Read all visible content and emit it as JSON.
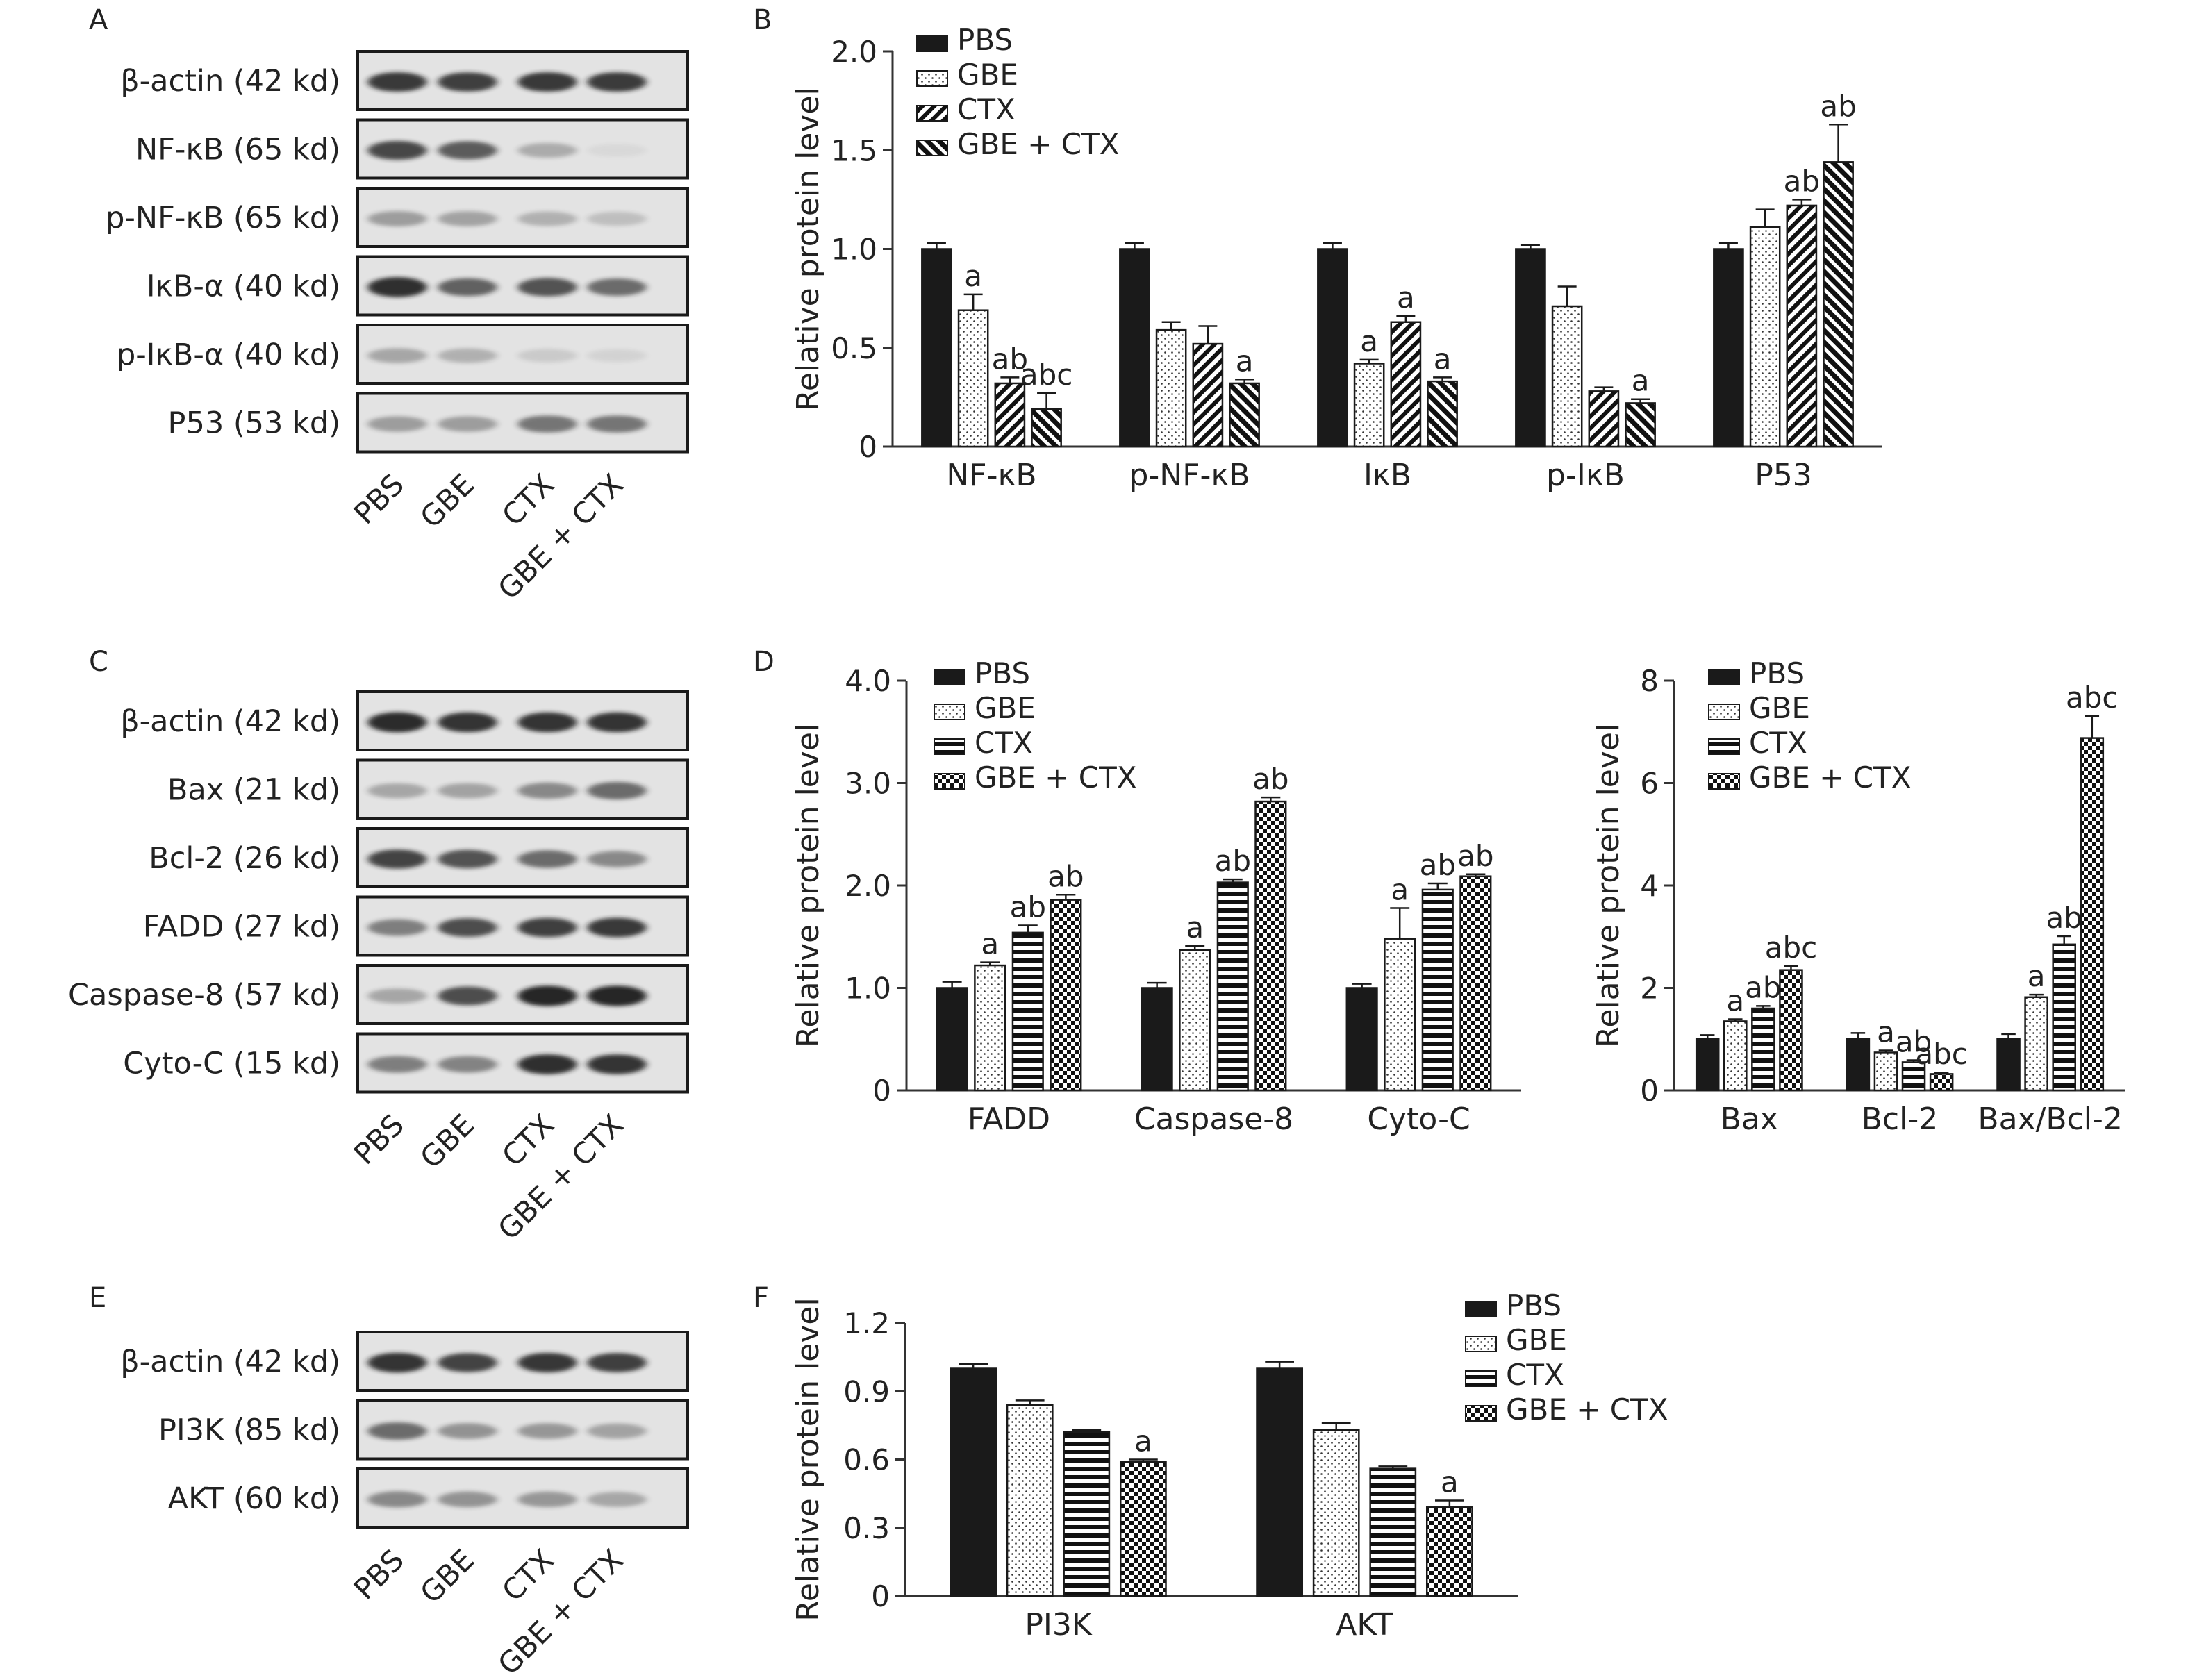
{
  "panel_letters": {
    "a": "A",
    "b": "B",
    "c": "C",
    "d": "D",
    "e": "E",
    "f": "F"
  },
  "lane_labels": [
    "PBS",
    "GBE",
    "CTX",
    "GBE + CTX"
  ],
  "blots": [
    {
      "panel": "A",
      "rows": [
        {
          "label": "β-actin (42 kd)",
          "intensity": [
            0.85,
            0.82,
            0.85,
            0.84
          ]
        },
        {
          "label": "NF-κB (65 kd)",
          "intensity": [
            0.78,
            0.68,
            0.28,
            0.05
          ]
        },
        {
          "label": "p-NF-κB (65 kd)",
          "intensity": [
            0.35,
            0.32,
            0.25,
            0.18
          ]
        },
        {
          "label": "IκB-α (40 kd)",
          "intensity": [
            0.9,
            0.65,
            0.72,
            0.6
          ]
        },
        {
          "label": "p-IκB-α (40 kd)",
          "intensity": [
            0.3,
            0.25,
            0.12,
            0.08
          ]
        },
        {
          "label": "P53 (53 kd)",
          "intensity": [
            0.35,
            0.35,
            0.55,
            0.55
          ]
        }
      ]
    },
    {
      "panel": "C",
      "rows": [
        {
          "label": "β-actin (42 kd)",
          "intensity": [
            0.92,
            0.88,
            0.88,
            0.88
          ]
        },
        {
          "label": "Bax (21 kd)",
          "intensity": [
            0.3,
            0.32,
            0.45,
            0.6
          ]
        },
        {
          "label": "Bcl-2 (26 kd)",
          "intensity": [
            0.8,
            0.72,
            0.6,
            0.45
          ]
        },
        {
          "label": "FADD (27 kd)",
          "intensity": [
            0.5,
            0.75,
            0.82,
            0.85
          ]
        },
        {
          "label": "Caspase-8 (57 kd)",
          "intensity": [
            0.3,
            0.75,
            0.95,
            0.95
          ]
        },
        {
          "label": "Cyto-C (15 kd)",
          "intensity": [
            0.5,
            0.48,
            0.9,
            0.88
          ]
        }
      ]
    },
    {
      "panel": "E",
      "rows": [
        {
          "label": "β-actin (42 kd)",
          "intensity": [
            0.88,
            0.8,
            0.86,
            0.82
          ]
        },
        {
          "label": "PI3K (85 kd)",
          "intensity": [
            0.6,
            0.4,
            0.38,
            0.32
          ]
        },
        {
          "label": "AKT (60 kd)",
          "intensity": [
            0.45,
            0.4,
            0.38,
            0.3
          ]
        }
      ]
    }
  ],
  "series_styles": {
    "PBS": {
      "pattern": "solid",
      "color": "#1a1a1a"
    },
    "GBE": {
      "pattern": "dots"
    },
    "CTX": {
      "pattern": "horizontal-stripes"
    },
    "GBE + CTX": {
      "pattern": "checker"
    }
  },
  "chart_data": [
    {
      "id": "B",
      "type": "bar",
      "ylabel": "Relative protein level",
      "ylim": [
        0,
        2.0
      ],
      "yticks": [
        "0",
        "0.5",
        "1.0",
        "1.5",
        "2.0"
      ],
      "categories": [
        "NF-κB",
        "p-NF-κB",
        "IκB",
        "p-IκB",
        "P53"
      ],
      "legend_position": "top-left",
      "series": [
        {
          "name": "PBS",
          "pattern": "solid",
          "values": [
            1.0,
            1.0,
            1.0,
            1.0,
            1.0
          ],
          "errors": [
            0.03,
            0.03,
            0.03,
            0.02,
            0.03
          ],
          "marks": [
            "",
            "",
            "",
            "",
            ""
          ]
        },
        {
          "name": "GBE",
          "pattern": "dots",
          "values": [
            0.69,
            0.59,
            0.42,
            0.71,
            1.11
          ],
          "errors": [
            0.08,
            0.04,
            0.02,
            0.1,
            0.09
          ],
          "marks": [
            "a",
            "",
            "a",
            "",
            ""
          ]
        },
        {
          "name": "CTX",
          "pattern": "diagonal-stripes",
          "values": [
            0.32,
            0.52,
            0.63,
            0.28,
            1.22
          ],
          "errors": [
            0.03,
            0.09,
            0.03,
            0.02,
            0.03
          ],
          "marks": [
            "ab",
            "",
            "a",
            "",
            "ab"
          ]
        },
        {
          "name": "GBE + CTX",
          "pattern": "diagonal-hatch",
          "values": [
            0.19,
            0.32,
            0.33,
            0.22,
            1.44
          ],
          "errors": [
            0.08,
            0.02,
            0.02,
            0.02,
            0.19
          ],
          "marks": [
            "abc",
            "a",
            "a",
            "a",
            "ab"
          ]
        }
      ]
    },
    {
      "id": "D1",
      "type": "bar",
      "ylabel": "Relative protein level",
      "ylim": [
        0,
        4.0
      ],
      "yticks": [
        "0",
        "1.0",
        "2.0",
        "3.0",
        "4.0"
      ],
      "categories": [
        "FADD",
        "Caspase-8",
        "Cyto-C"
      ],
      "legend_position": "top-left",
      "series": [
        {
          "name": "PBS",
          "pattern": "solid",
          "values": [
            1.0,
            1.0,
            1.0
          ],
          "errors": [
            0.06,
            0.05,
            0.04
          ],
          "marks": [
            "",
            "",
            ""
          ]
        },
        {
          "name": "GBE",
          "pattern": "dots",
          "values": [
            1.22,
            1.37,
            1.48
          ],
          "errors": [
            0.03,
            0.04,
            0.3
          ],
          "marks": [
            "a",
            "a",
            "a"
          ]
        },
        {
          "name": "CTX",
          "pattern": "horizontal-stripes",
          "values": [
            1.54,
            2.03,
            1.96
          ],
          "errors": [
            0.07,
            0.03,
            0.06
          ],
          "marks": [
            "ab",
            "ab",
            "ab"
          ]
        },
        {
          "name": "GBE + CTX",
          "pattern": "checker",
          "values": [
            1.86,
            2.82,
            2.09
          ],
          "errors": [
            0.05,
            0.04,
            0.02
          ],
          "marks": [
            "ab",
            "ab",
            "ab"
          ]
        }
      ]
    },
    {
      "id": "D2",
      "type": "bar",
      "ylabel": "Relative protein level",
      "ylim": [
        0,
        8
      ],
      "yticks": [
        "0",
        "2",
        "4",
        "6",
        "8"
      ],
      "categories": [
        "Bax",
        "Bcl-2",
        "Bax/Bcl-2"
      ],
      "legend_position": "top-left",
      "series": [
        {
          "name": "PBS",
          "pattern": "solid",
          "values": [
            1.0,
            1.0,
            1.0
          ],
          "errors": [
            0.08,
            0.12,
            0.1
          ],
          "marks": [
            "",
            "",
            ""
          ]
        },
        {
          "name": "GBE",
          "pattern": "dots",
          "values": [
            1.35,
            0.74,
            1.82
          ],
          "errors": [
            0.04,
            0.04,
            0.05
          ],
          "marks": [
            "a",
            "a",
            "a"
          ]
        },
        {
          "name": "CTX",
          "pattern": "horizontal-stripes",
          "values": [
            1.6,
            0.55,
            2.85
          ],
          "errors": [
            0.05,
            0.04,
            0.16
          ],
          "marks": [
            "ab",
            "ab",
            "ab"
          ]
        },
        {
          "name": "GBE + CTX",
          "pattern": "checker",
          "values": [
            2.35,
            0.32,
            6.88
          ],
          "errors": [
            0.08,
            0.03,
            0.43
          ],
          "marks": [
            "abc",
            "abc",
            "abc"
          ]
        }
      ]
    },
    {
      "id": "F",
      "type": "bar",
      "ylabel": "Relative protein level",
      "ylim": [
        0,
        1.2
      ],
      "yticks": [
        "0",
        "0.3",
        "0.6",
        "0.9",
        "1.2"
      ],
      "categories": [
        "PI3K",
        "AKT"
      ],
      "legend_position": "top-right",
      "series": [
        {
          "name": "PBS",
          "pattern": "solid",
          "values": [
            1.0,
            1.0
          ],
          "errors": [
            0.02,
            0.03
          ],
          "marks": [
            "",
            ""
          ]
        },
        {
          "name": "GBE",
          "pattern": "dots",
          "values": [
            0.84,
            0.73
          ],
          "errors": [
            0.02,
            0.03
          ],
          "marks": [
            "",
            ""
          ]
        },
        {
          "name": "CTX",
          "pattern": "horizontal-stripes",
          "values": [
            0.72,
            0.56
          ],
          "errors": [
            0.01,
            0.01
          ],
          "marks": [
            "",
            ""
          ]
        },
        {
          "name": "GBE + CTX",
          "pattern": "checker",
          "values": [
            0.59,
            0.39
          ],
          "errors": [
            0.01,
            0.03
          ],
          "marks": [
            "a",
            "a"
          ]
        }
      ]
    }
  ]
}
